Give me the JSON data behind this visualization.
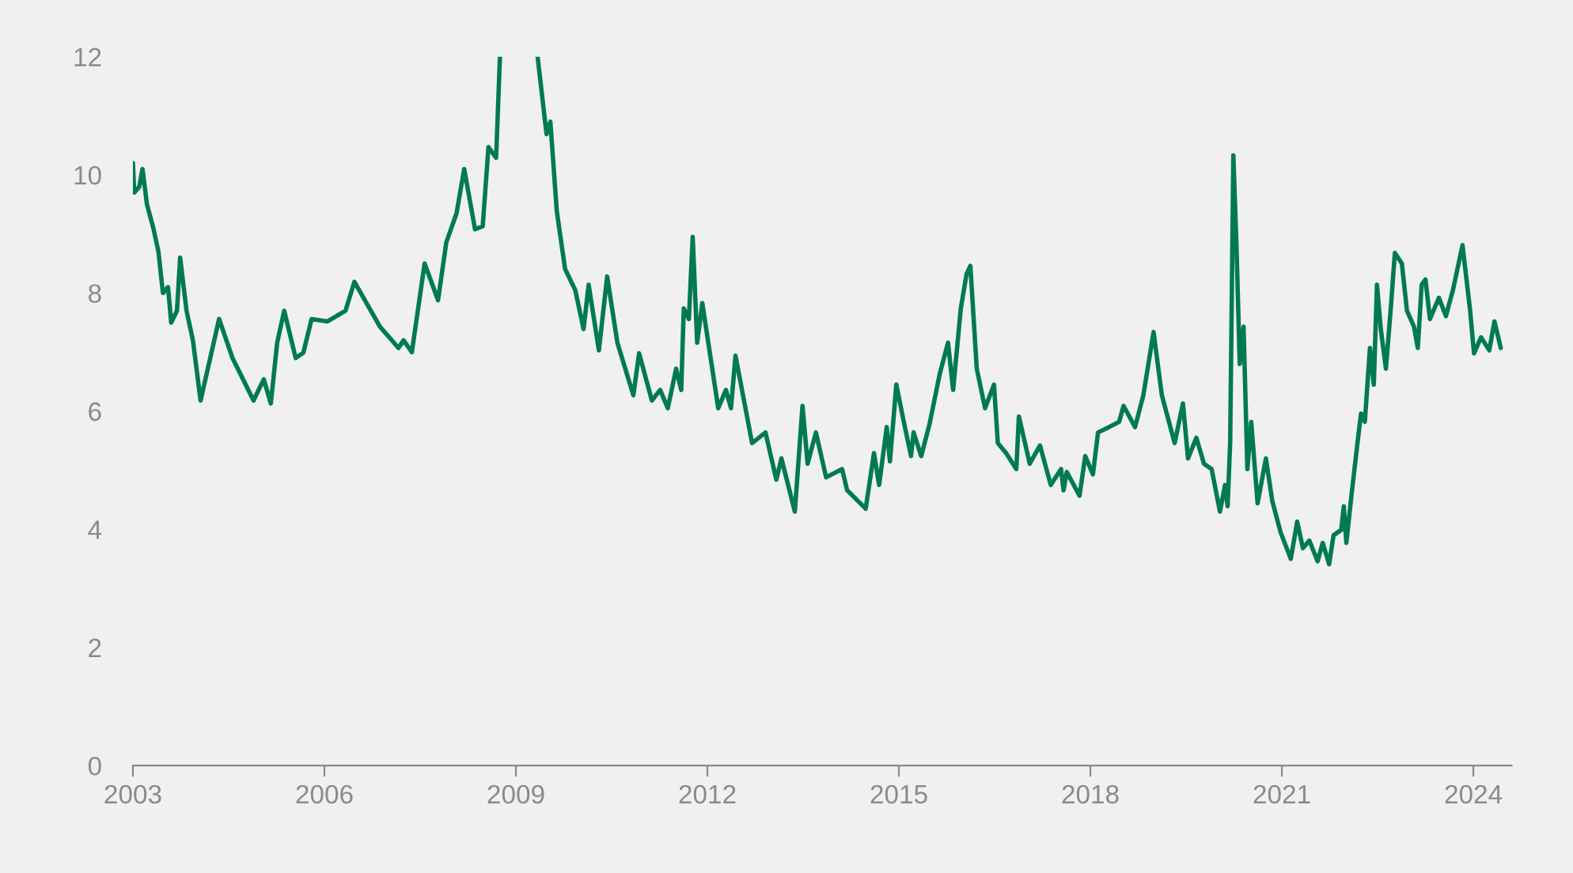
{
  "chart_data": {
    "type": "line",
    "xlim": [
      2003,
      2024.6
    ],
    "xticks": [
      2003,
      2006,
      2009,
      2012,
      2015,
      2018,
      2021,
      2024
    ],
    "ylim": [
      0,
      12
    ],
    "yticks": [
      0,
      2,
      4,
      6,
      8,
      10,
      12
    ],
    "grid": false,
    "series": [
      {
        "color": "#007a53",
        "x": [
          2003.0,
          2003.02,
          2003.1,
          2003.15,
          2003.22,
          2003.32,
          2003.4,
          2003.47,
          2003.55,
          2003.6,
          2003.69,
          2003.74,
          2003.84,
          2003.94,
          2004.06,
          2004.35,
          2004.56,
          2004.89,
          2005.05,
          2005.16,
          2005.26,
          2005.37,
          2005.55,
          2005.67,
          2005.8,
          2006.05,
          2006.33,
          2006.47,
          2006.87,
          2007.16,
          2007.24,
          2007.37,
          2007.57,
          2007.78,
          2007.91,
          2008.07,
          2008.19,
          2008.36,
          2008.48,
          2008.57,
          2008.69,
          2008.75,
          2009.0,
          2009.34,
          2009.48,
          2009.54,
          2009.64,
          2009.77,
          2009.93,
          2010.06,
          2010.14,
          2010.3,
          2010.43,
          2010.59,
          2010.84,
          2010.93,
          2011.13,
          2011.26,
          2011.38,
          2011.51,
          2011.59,
          2011.63,
          2011.71,
          2011.77,
          2011.84,
          2011.92,
          2012.17,
          2012.29,
          2012.37,
          2012.44,
          2012.7,
          2012.91,
          2013.08,
          2013.16,
          2013.37,
          2013.49,
          2013.57,
          2013.7,
          2013.86,
          2014.11,
          2014.19,
          2014.48,
          2014.61,
          2014.69,
          2014.81,
          2014.86,
          2014.96,
          2015.06,
          2015.19,
          2015.23,
          2015.35,
          2015.48,
          2015.64,
          2015.77,
          2015.85,
          2015.97,
          2016.06,
          2016.12,
          2016.22,
          2016.35,
          2016.49,
          2016.55,
          2016.68,
          2016.84,
          2016.88,
          2017.05,
          2017.21,
          2017.38,
          2017.54,
          2017.58,
          2017.63,
          2017.83,
          2017.92,
          2018.04,
          2018.12,
          2018.29,
          2018.45,
          2018.52,
          2018.7,
          2018.83,
          2018.99,
          2019.12,
          2019.32,
          2019.45,
          2019.53,
          2019.66,
          2019.78,
          2019.9,
          2020.03,
          2020.11,
          2020.15,
          2020.19,
          2020.24,
          2020.29,
          2020.34,
          2020.4,
          2020.46,
          2020.52,
          2020.62,
          2020.75,
          2020.85,
          2020.98,
          2021.14,
          2021.24,
          2021.33,
          2021.43,
          2021.56,
          2021.64,
          2021.74,
          2021.81,
          2021.93,
          2021.97,
          2022.01,
          2022.09,
          2022.18,
          2022.24,
          2022.3,
          2022.38,
          2022.44,
          2022.49,
          2022.55,
          2022.63,
          2022.71,
          2022.77,
          2022.88,
          2022.96,
          2023.07,
          2023.13,
          2023.19,
          2023.25,
          2023.32,
          2023.46,
          2023.57,
          2023.68,
          2023.83,
          2023.95,
          2024.01,
          2024.12,
          2024.25,
          2024.33,
          2024.43
        ],
        "values": [
          10.2,
          9.7,
          9.8,
          10.1,
          9.5,
          9.1,
          8.7,
          8.0,
          8.1,
          7.5,
          7.7,
          8.6,
          7.7,
          7.2,
          6.18,
          7.56,
          6.9,
          6.18,
          6.54,
          6.13,
          7.16,
          7.7,
          6.9,
          6.99,
          7.56,
          7.52,
          7.7,
          8.19,
          7.43,
          7.07,
          7.2,
          7.0,
          8.5,
          7.88,
          8.86,
          9.35,
          10.1,
          9.08,
          9.13,
          10.47,
          10.29,
          12,
          null,
          12,
          10.69,
          10.9,
          9.39,
          8.41,
          8.05,
          7.39,
          8.14,
          7.03,
          8.28,
          7.16,
          6.27,
          6.98,
          6.18,
          6.36,
          6.05,
          6.72,
          6.36,
          7.74,
          7.56,
          8.95,
          7.16,
          7.83,
          6.05,
          6.36,
          6.05,
          6.94,
          5.46,
          5.64,
          4.84,
          5.2,
          4.3,
          6.09,
          5.11,
          5.64,
          4.88,
          5.02,
          4.66,
          4.35,
          5.29,
          4.75,
          5.73,
          5.15,
          6.45,
          5.91,
          5.24,
          5.64,
          5.24,
          5.78,
          6.63,
          7.16,
          6.36,
          7.74,
          8.32,
          8.46,
          6.72,
          6.05,
          6.45,
          5.46,
          5.29,
          5.02,
          5.91,
          5.11,
          5.42,
          4.75,
          5.02,
          4.66,
          4.97,
          4.57,
          5.24,
          4.93,
          5.64,
          5.73,
          5.82,
          6.09,
          5.73,
          6.27,
          7.34,
          6.27,
          5.46,
          6.13,
          5.2,
          5.55,
          5.11,
          5.02,
          4.3,
          4.75,
          4.39,
          5.46,
          10.33,
          8.77,
          6.8,
          7.43,
          5.02,
          5.82,
          4.44,
          5.2,
          4.48,
          3.95,
          3.5,
          4.13,
          3.68,
          3.81,
          3.46,
          3.77,
          3.41,
          3.9,
          3.99,
          4.39,
          3.77,
          4.57,
          5.42,
          5.96,
          5.82,
          7.07,
          6.45,
          8.14,
          7.39,
          6.72,
          7.79,
          8.68,
          8.5,
          7.7,
          7.43,
          7.07,
          8.14,
          8.23,
          7.56,
          7.92,
          7.61,
          8.05,
          8.81,
          7.7,
          6.98,
          7.25,
          7.03,
          7.52,
          7.07
        ]
      }
    ]
  }
}
